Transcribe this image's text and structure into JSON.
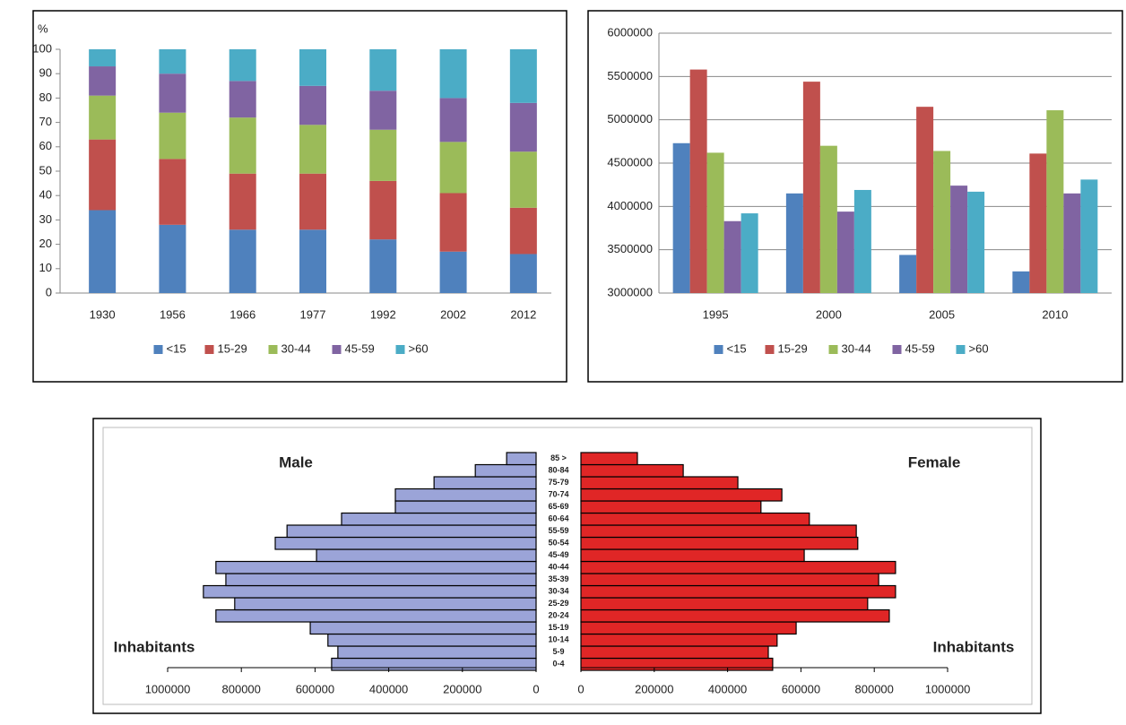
{
  "chart_data": [
    {
      "type": "stacked_bar",
      "y_label": "%",
      "categories": [
        "1930",
        "1956",
        "1966",
        "1977",
        "1992",
        "2002",
        "2012"
      ],
      "series": [
        {
          "name": "<15",
          "color": "#4f81bd",
          "values": [
            34,
            28,
            26,
            26,
            22,
            17,
            16
          ]
        },
        {
          "name": "15-29",
          "color": "#c0504d",
          "values": [
            29,
            27,
            23,
            23,
            24,
            24,
            19
          ]
        },
        {
          "name": "30-44",
          "color": "#9bbb59",
          "values": [
            18,
            19,
            23,
            20,
            21,
            21,
            23
          ]
        },
        {
          "name": "45-59",
          "color": "#8064a2",
          "values": [
            12,
            16,
            15,
            16,
            16,
            18,
            20
          ]
        },
        {
          "name": ">60",
          "color": "#4bacc6",
          "values": [
            7,
            10,
            13,
            15,
            17,
            20,
            22
          ]
        }
      ],
      "ylim": [
        0,
        100
      ],
      "yticks": [
        0,
        10,
        20,
        30,
        40,
        50,
        60,
        70,
        80,
        90,
        100
      ],
      "legend": "bottom"
    },
    {
      "type": "bar",
      "categories": [
        "1995",
        "2000",
        "2005",
        "2010"
      ],
      "series": [
        {
          "name": "<15",
          "color": "#4f81bd",
          "values": [
            4730000,
            4150000,
            3440000,
            3250000
          ]
        },
        {
          "name": "15-29",
          "color": "#c0504d",
          "values": [
            5580000,
            5440000,
            5150000,
            4610000
          ]
        },
        {
          "name": "30-44",
          "color": "#9bbb59",
          "values": [
            4620000,
            4700000,
            4640000,
            5110000
          ]
        },
        {
          "name": "45-59",
          "color": "#8064a2",
          "values": [
            3830000,
            3940000,
            4240000,
            4150000
          ]
        },
        {
          "name": ">60",
          "color": "#4bacc6",
          "values": [
            3920000,
            4190000,
            4170000,
            4310000
          ]
        }
      ],
      "ylim": [
        3000000,
        6000000
      ],
      "yticks": [
        3000000,
        3500000,
        4000000,
        4500000,
        5000000,
        5500000,
        6000000
      ],
      "grid": true,
      "legend": "bottom"
    },
    {
      "type": "pyramid",
      "x_label": "Inhabitants",
      "categories": [
        "0-4",
        "5-9",
        "10-14",
        "15-19",
        "20-24",
        "25-29",
        "30-34",
        "35-39",
        "40-44",
        "45-49",
        "50-54",
        "55-59",
        "60-64",
        "65-69",
        "70-74",
        "75-79",
        "80-84",
        "85 >"
      ],
      "series": [
        {
          "name": "Male",
          "color": "#9ba4d8",
          "values": [
            555000,
            538000,
            565000,
            613000,
            869000,
            818000,
            903000,
            842000,
            869000,
            596000,
            708000,
            676000,
            528000,
            382000,
            382000,
            277000,
            165000,
            80000
          ]
        },
        {
          "name": "Female",
          "color": "#e02626",
          "values": [
            523000,
            511000,
            535000,
            587000,
            841000,
            782000,
            858000,
            812000,
            858000,
            609000,
            755000,
            751000,
            623000,
            491000,
            548000,
            428000,
            279000,
            154000
          ]
        }
      ],
      "xlim": [
        0,
        1000000
      ],
      "xticks": [
        0,
        200000,
        400000,
        600000,
        800000,
        1000000
      ]
    }
  ]
}
